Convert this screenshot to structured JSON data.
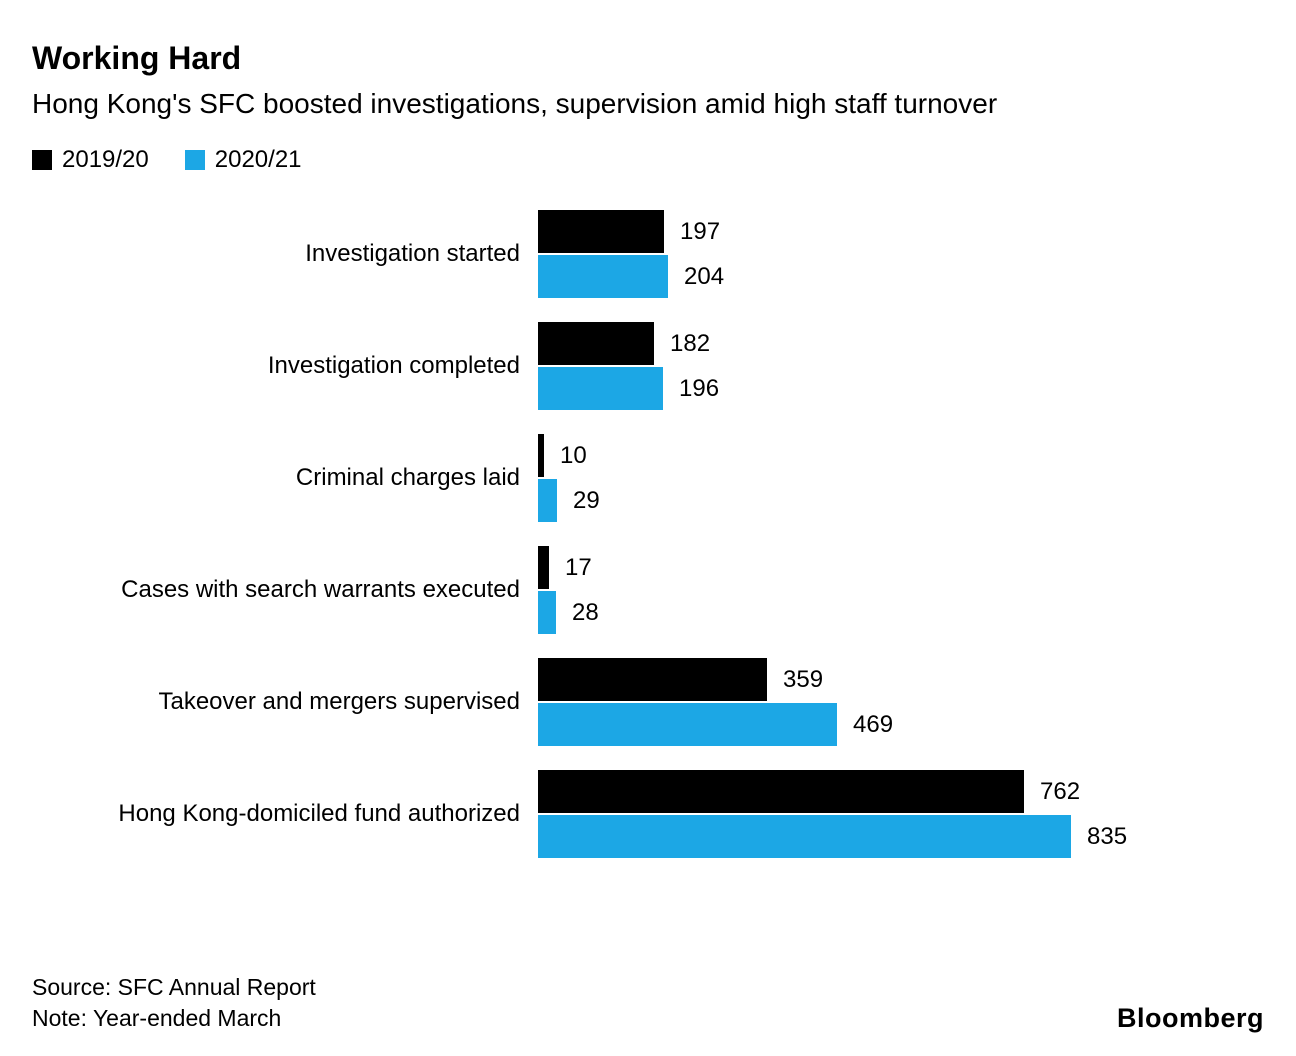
{
  "header": {
    "title": "Working Hard",
    "subtitle": "Hong Kong's SFC boosted investigations, supervision amid high staff turnover"
  },
  "legend": [
    {
      "label": "2019/20",
      "color": "#000000"
    },
    {
      "label": "2020/21",
      "color": "#1CA7E5"
    }
  ],
  "chart_data": {
    "type": "bar",
    "orientation": "horizontal",
    "title": "Working Hard",
    "subtitle": "Hong Kong's SFC boosted investigations, supervision amid high staff turnover",
    "categories": [
      "Investigation started",
      "Investigation completed",
      "Criminal charges laid",
      "Cases with search warrants executed",
      "Takeover and mergers supervised",
      "Hong Kong-domiciled fund authorized"
    ],
    "series": [
      {
        "name": "2019/20",
        "color": "#000000",
        "values": [
          197,
          182,
          10,
          17,
          359,
          762
        ]
      },
      {
        "name": "2020/21",
        "color": "#1CA7E5",
        "values": [
          204,
          196,
          29,
          28,
          469,
          835
        ]
      }
    ],
    "value_labels": true,
    "xlim": [
      0,
      835
    ],
    "grid": false,
    "legend_position": "top-left"
  },
  "footer": {
    "source": "Source: SFC Annual Report",
    "note": "Note: Year-ended March",
    "brand": "Bloomberg"
  }
}
